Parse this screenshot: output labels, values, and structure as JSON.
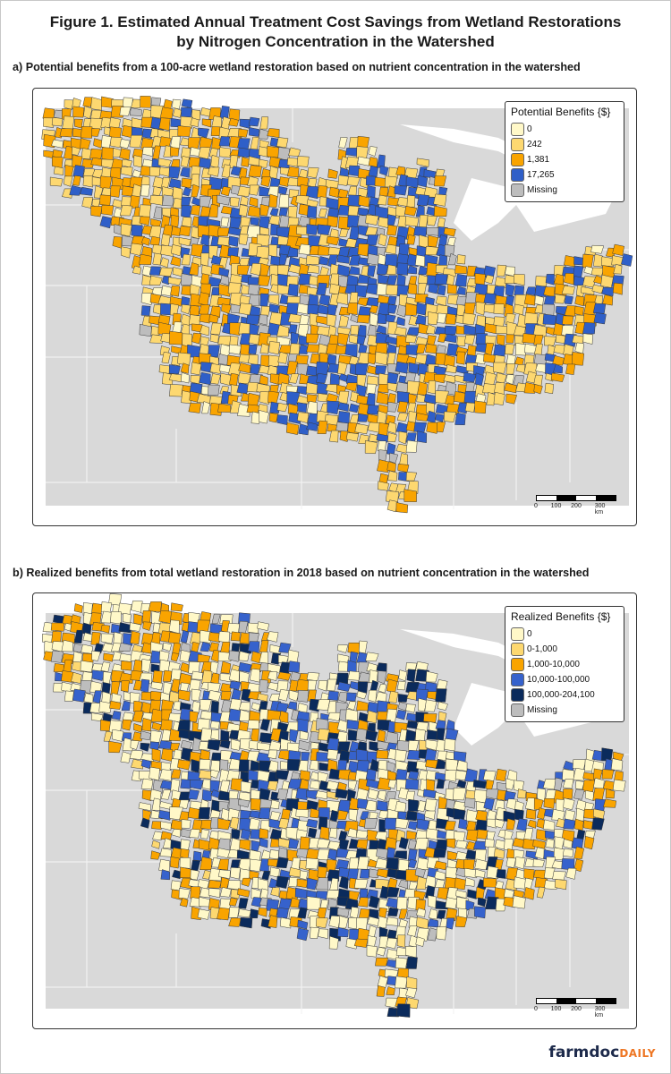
{
  "figure": {
    "title_line1": "Figure 1. Estimated Annual Treatment Cost Savings from Wetland Restorations",
    "title_line2": "by Nitrogen Concentration in the Watershed"
  },
  "panels": [
    {
      "caption": "a) Potential benefits from a 100-acre wetland restoration based on nutrient concentration in the watershed",
      "legend": {
        "title": "Potential Benefits {$}",
        "items": [
          {
            "label": "0",
            "color": "#fff8c8"
          },
          {
            "label": "242",
            "color": "#fdd870"
          },
          {
            "label": "1,381",
            "color": "#f9a400"
          },
          {
            "label": "17,265",
            "color": "#2f5fc8"
          },
          {
            "label": "Missing",
            "color": "#bdbdbd"
          }
        ]
      },
      "scalebar": {
        "labels": [
          "0",
          "100",
          "200",
          "300 km"
        ]
      }
    },
    {
      "caption": "b) Realized benefits from total wetland restoration in 2018 based on nutrient concentration in the watershed",
      "legend": {
        "title": "Realized Benefits {$}",
        "items": [
          {
            "label": "0",
            "color": "#fff8c8"
          },
          {
            "label": "0-1,000",
            "color": "#fdd870"
          },
          {
            "label": "1,000-10,000",
            "color": "#f9a400"
          },
          {
            "label": "10,000-100,000",
            "color": "#3662cc"
          },
          {
            "label": "100,000-204,100",
            "color": "#0b2b5c"
          },
          {
            "label": "Missing",
            "color": "#bdbdbd"
          }
        ]
      },
      "scalebar": {
        "labels": [
          "0",
          "100",
          "200",
          "300 km"
        ]
      }
    }
  ],
  "branding": {
    "logo_part1": "farmdoc",
    "logo_part2": "DAILY"
  },
  "colors": {
    "basemap": "#d9d9d9",
    "state_lines": "#f2f2f2",
    "lakes": "#ffffff"
  }
}
